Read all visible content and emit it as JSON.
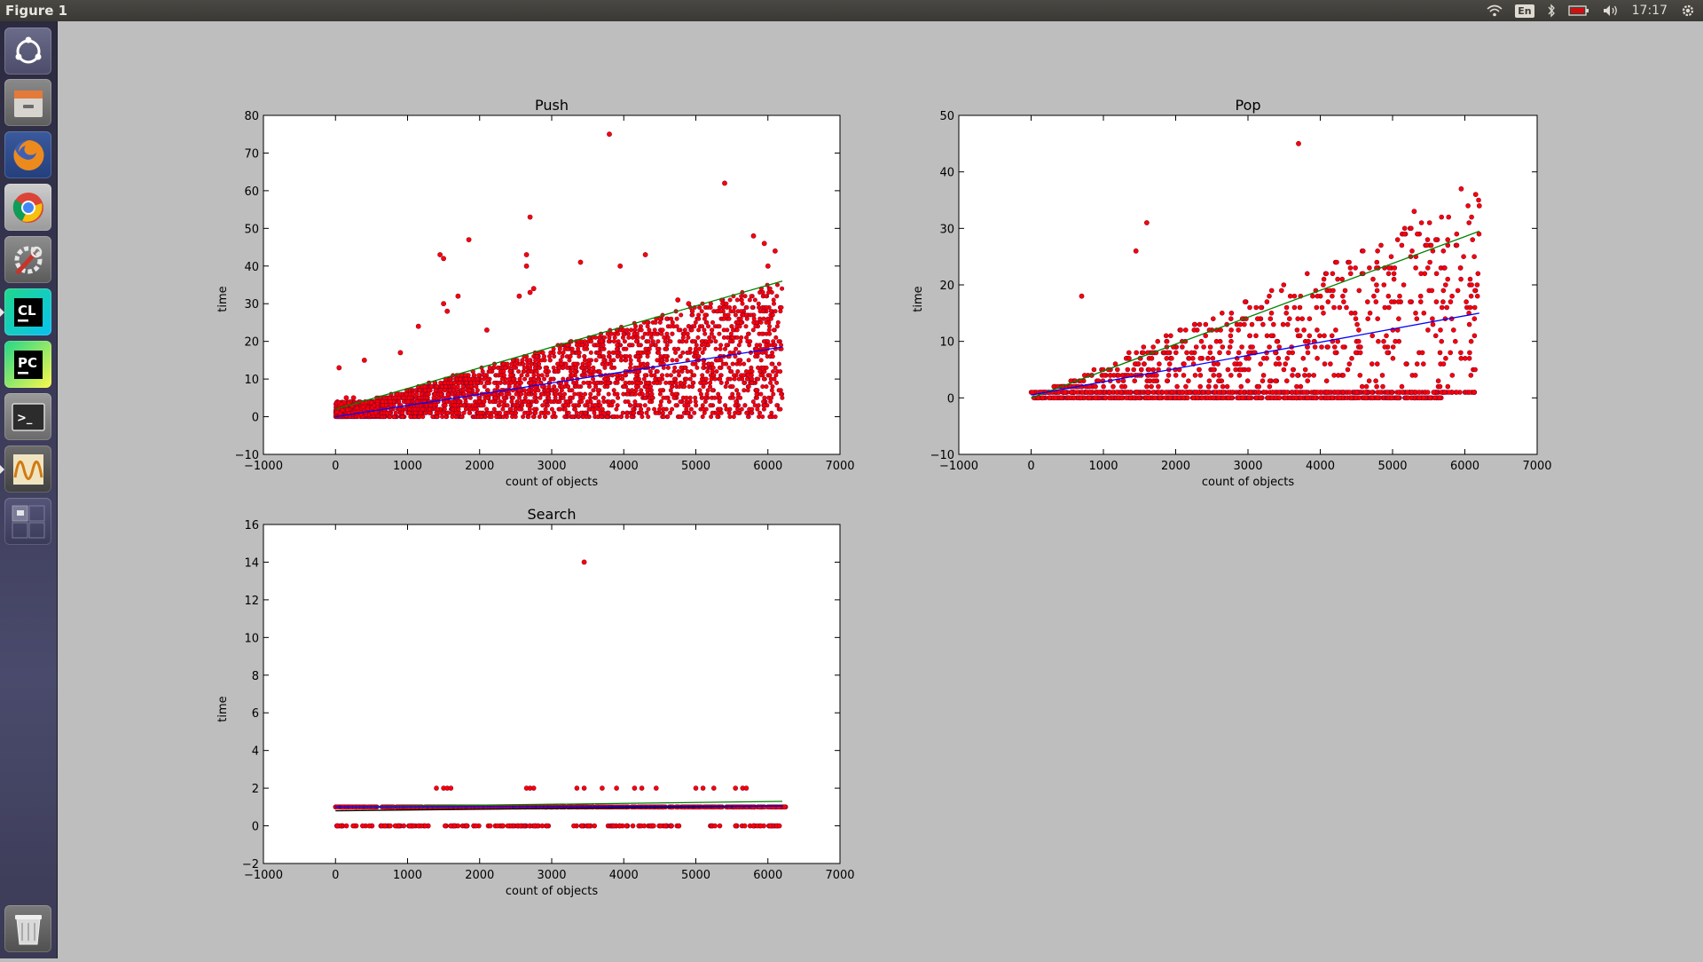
{
  "window": {
    "title": "Figure 1"
  },
  "topbar": {
    "lang": "En",
    "clock": "17:17"
  },
  "launcher": {
    "items": [
      {
        "name": "dash-home-icon"
      },
      {
        "name": "files-icon"
      },
      {
        "name": "firefox-icon"
      },
      {
        "name": "chrome-icon"
      },
      {
        "name": "system-settings-icon"
      },
      {
        "name": "clion-icon",
        "label": "CL"
      },
      {
        "name": "pycharm-icon",
        "label": "PC"
      },
      {
        "name": "terminal-icon",
        "label": ">_"
      },
      {
        "name": "oscilloscope-app-icon"
      },
      {
        "name": "workspace-switcher-icon"
      },
      {
        "name": "trash-icon"
      }
    ]
  },
  "colors": {
    "points": "#ff0000",
    "points_edge": "#8b0030",
    "fit_mean": "#0000ff",
    "fit_upper": "#008000",
    "fit_search_mean": "#000000"
  },
  "chart_data": [
    {
      "type": "scatter",
      "title": "Push",
      "xlabel": "count of objects",
      "ylabel": "time",
      "xlim": [
        -1000,
        7000
      ],
      "ylim": [
        -10,
        80
      ],
      "xticks": [
        -1000,
        0,
        1000,
        2000,
        3000,
        4000,
        5000,
        6000,
        7000
      ],
      "yticks": [
        -10,
        0,
        10,
        20,
        30,
        40,
        50,
        60,
        70,
        80
      ],
      "description": "dense band of points for x 0–6200, y from 0 up to roughly 0.0056·x, plus scattered outliers",
      "outliers": [
        [
          3800,
          75
        ],
        [
          5400,
          62
        ],
        [
          2700,
          53
        ],
        [
          1850,
          47
        ],
        [
          5800,
          48
        ],
        [
          5950,
          46
        ],
        [
          6100,
          44
        ],
        [
          1450,
          43
        ],
        [
          2650,
          43
        ],
        [
          4300,
          43
        ],
        [
          3400,
          41
        ],
        [
          3950,
          40
        ],
        [
          6000,
          40
        ],
        [
          1500,
          42
        ],
        [
          2650,
          40
        ],
        [
          1700,
          32
        ],
        [
          2700,
          33
        ],
        [
          2550,
          32
        ],
        [
          2750,
          34
        ],
        [
          1500,
          30
        ],
        [
          1550,
          28
        ],
        [
          4750,
          31
        ],
        [
          4900,
          30
        ],
        [
          1150,
          24
        ],
        [
          2100,
          23
        ],
        [
          900,
          17
        ],
        [
          400,
          15
        ],
        [
          50,
          13
        ],
        [
          150,
          5
        ],
        [
          250,
          5
        ]
      ],
      "series": [
        {
          "name": "",
          "kind": "line",
          "color": "#008000",
          "x": [
            0,
            6200
          ],
          "y": [
            2,
            36
          ]
        },
        {
          "name": "",
          "kind": "line",
          "color": "#0000ff",
          "x": [
            0,
            6200
          ],
          "y": [
            0,
            18.5
          ]
        }
      ]
    },
    {
      "type": "scatter",
      "title": "Pop",
      "xlabel": "count of objects",
      "ylabel": "time",
      "xlim": [
        -1000,
        7000
      ],
      "ylim": [
        -10,
        50
      ],
      "xticks": [
        -1000,
        0,
        1000,
        2000,
        3000,
        4000,
        5000,
        6000,
        7000
      ],
      "yticks": [
        -10,
        0,
        10,
        20,
        30,
        40,
        50
      ],
      "description": "points concentrated along y=0 and y=1 for x 0–6200, with sparse points up to about 0.006·x",
      "outliers": [
        [
          3700,
          45
        ],
        [
          1600,
          31
        ],
        [
          1450,
          26
        ],
        [
          700,
          18
        ],
        [
          5950,
          37
        ],
        [
          6150,
          36
        ],
        [
          6200,
          34
        ],
        [
          5300,
          33
        ]
      ],
      "series": [
        {
          "name": "",
          "kind": "line",
          "color": "#008000",
          "x": [
            0,
            6200
          ],
          "y": [
            0,
            29.5
          ]
        },
        {
          "name": "",
          "kind": "line",
          "color": "#0000ff",
          "x": [
            0,
            6200
          ],
          "y": [
            0.5,
            15
          ]
        }
      ]
    },
    {
      "type": "scatter",
      "title": "Search",
      "xlabel": "count of objects",
      "ylabel": "time",
      "xlim": [
        -1000,
        7000
      ],
      "ylim": [
        -2,
        16
      ],
      "xticks": [
        -1000,
        0,
        1000,
        2000,
        3000,
        4000,
        5000,
        6000,
        7000
      ],
      "yticks": [
        -2,
        0,
        2,
        4,
        6,
        8,
        10,
        12,
        14,
        16
      ],
      "description": "points at y=1 across x 0–6200, points at y=0 in clusters, a few at y=2, one at y=14",
      "y2_x": [
        1400,
        1500,
        1550,
        1600,
        2650,
        2700,
        2750,
        3350,
        3450,
        3700,
        3900,
        4150,
        4250,
        4450,
        5000,
        5100,
        5250,
        5550,
        5650,
        5700
      ],
      "outliers": [
        [
          3450,
          14
        ]
      ],
      "series": [
        {
          "name": "",
          "kind": "line",
          "color": "#008000",
          "x": [
            0,
            6200
          ],
          "y": [
            1.0,
            1.3
          ]
        },
        {
          "name": "",
          "kind": "line",
          "color": "#000000",
          "x": [
            0,
            6200
          ],
          "y": [
            0.8,
            1.05
          ]
        },
        {
          "name": "",
          "kind": "line",
          "color": "#0000ff",
          "x": [
            0,
            6200
          ],
          "y": [
            1.0,
            1.05
          ]
        }
      ]
    }
  ]
}
